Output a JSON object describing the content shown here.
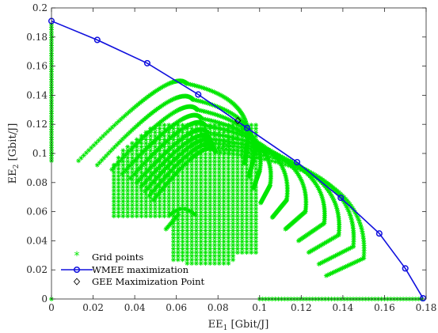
{
  "chart_data": {
    "type": "scatter",
    "title": "",
    "xlabel": {
      "base": "EE",
      "sub": "1",
      "unit": " [Gbit/J]"
    },
    "ylabel": {
      "base": "EE",
      "sub": "2",
      "unit": " [Gbit/J]"
    },
    "xlim": [
      0,
      0.18
    ],
    "ylim": [
      0,
      0.2
    ],
    "xticks": [
      "0",
      "0.02",
      "0.04",
      "0.06",
      "0.08",
      "0.1",
      "0.12",
      "0.14",
      "0.16",
      "0.18"
    ],
    "yticks": [
      "0",
      "0.02",
      "0.04",
      "0.06",
      "0.08",
      "0.1",
      "0.12",
      "0.14",
      "0.16",
      "0.18",
      "0.2"
    ],
    "xtick_values": [
      0,
      0.02,
      0.04,
      0.06,
      0.08,
      0.1,
      0.12,
      0.14,
      0.16,
      0.18
    ],
    "ytick_values": [
      0,
      0.02,
      0.04,
      0.06,
      0.08,
      0.1,
      0.12,
      0.14,
      0.16,
      0.18,
      0.2
    ],
    "grid": false,
    "legend_position": "bottom-left",
    "series": [
      {
        "name": "Grid points",
        "marker": "asterisk",
        "color": "#00e600",
        "arcs": [
          {
            "xs": 0.013,
            "ys": 0.095,
            "xe": 0.065,
            "ye": 0.148,
            "peak_x": 0.057,
            "peak_y": 0.148,
            "xr": 0.094,
            "yr": 0.105
          },
          {
            "xs": 0.022,
            "ys": 0.092,
            "xe": 0.068,
            "ye": 0.137,
            "peak_x": 0.06,
            "peak_y": 0.138,
            "xr": 0.097,
            "yr": 0.096
          },
          {
            "xs": 0.029,
            "ys": 0.089,
            "xe": 0.07,
            "ye": 0.13,
            "peak_x": 0.063,
            "peak_y": 0.13,
            "xr": 0.1,
            "yr": 0.088
          },
          {
            "xs": 0.034,
            "ys": 0.086,
            "xe": 0.072,
            "ye": 0.124,
            "peak_x": 0.066,
            "peak_y": 0.124,
            "xr": 0.105,
            "yr": 0.078
          },
          {
            "xs": 0.038,
            "ys": 0.083,
            "xe": 0.074,
            "ye": 0.119,
            "peak_x": 0.068,
            "peak_y": 0.119,
            "xr": 0.113,
            "yr": 0.068
          },
          {
            "xs": 0.041,
            "ys": 0.08,
            "xe": 0.075,
            "ye": 0.114,
            "peak_x": 0.07,
            "peak_y": 0.114,
            "xr": 0.122,
            "yr": 0.06
          },
          {
            "xs": 0.043,
            "ys": 0.077,
            "xe": 0.076,
            "ye": 0.11,
            "peak_x": 0.071,
            "peak_y": 0.11,
            "xr": 0.131,
            "yr": 0.052
          },
          {
            "xs": 0.045,
            "ys": 0.074,
            "xe": 0.077,
            "ye": 0.107,
            "peak_x": 0.072,
            "peak_y": 0.107,
            "xr": 0.138,
            "yr": 0.044
          },
          {
            "xs": 0.047,
            "ys": 0.071,
            "xe": 0.078,
            "ye": 0.104,
            "peak_x": 0.073,
            "peak_y": 0.104,
            "xr": 0.145,
            "yr": 0.036
          },
          {
            "xs": 0.049,
            "ys": 0.068,
            "xe": 0.079,
            "ye": 0.101,
            "peak_x": 0.074,
            "peak_y": 0.101,
            "xr": 0.15,
            "yr": 0.028
          }
        ],
        "fill_region": {
          "x_min": 0.03,
          "x_max": 0.1,
          "y_min": 0.012,
          "y_max": 0.12
        },
        "edge_x0": {
          "x": 0,
          "y_min": 0.095,
          "y_max": 0.19
        },
        "edge_y0": {
          "y": 0,
          "x_min": 0.1,
          "x_max": 0.178
        },
        "isolated_points": [
          {
            "x": 0,
            "y": 0
          },
          {
            "x": 0.178,
            "y": 0
          }
        ],
        "notch": {
          "x": 0.055,
          "y": 0.048
        }
      },
      {
        "name": "WMEE maximization",
        "marker": "circle",
        "color": "#1010dd",
        "x": [
          0,
          0.022,
          0.046,
          0.0705,
          0.094,
          0.118,
          0.139,
          0.1575,
          0.17,
          0.1785
        ],
        "y": [
          0.191,
          0.178,
          0.162,
          0.1405,
          0.1175,
          0.094,
          0.0695,
          0.045,
          0.021,
          0.0005
        ]
      },
      {
        "name": "GEE Maximization Point",
        "marker": "diamond",
        "color": "#000000",
        "x": [
          0.0895
        ],
        "y": [
          0.1225
        ]
      }
    ]
  }
}
